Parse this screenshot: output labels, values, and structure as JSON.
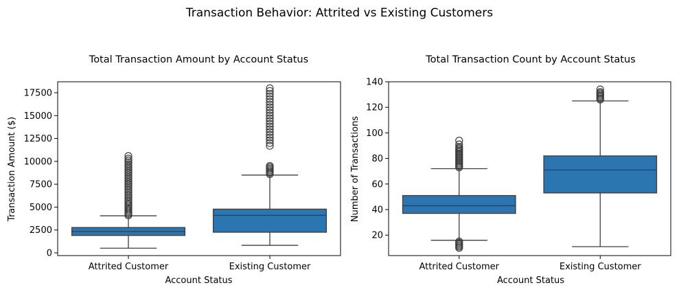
{
  "figure": {
    "title": "Transaction Behavior: Attrited vs Existing Customers"
  },
  "colors": {
    "box_fill": "#2b75b0",
    "line": "#3d3d3d",
    "axes": "#000000"
  },
  "chart_data": [
    {
      "type": "box",
      "title": "Total Transaction Amount by Account Status",
      "xlabel": "Account Status",
      "ylabel": "Transaction Amount ($)",
      "ylim": [
        -300,
        18700
      ],
      "yticks": [
        0,
        2500,
        5000,
        7500,
        10000,
        12500,
        15000,
        17500
      ],
      "ytick_labels": [
        "0",
        "2500",
        "5000",
        "7500",
        "10000",
        "12500",
        "15000",
        "17500"
      ],
      "categories": [
        "Attrited Customer",
        "Existing Customer"
      ],
      "boxes": [
        {
          "category": "Attrited Customer",
          "whisker_low": 510,
          "q1": 1900,
          "median": 2330,
          "q3": 2770,
          "whisker_high": 4050,
          "outliers": [
            4100,
            4250,
            4400,
            4550,
            4700,
            4850,
            5000,
            5150,
            5300,
            5500,
            5700,
            5900,
            6100,
            6300,
            6500,
            6700,
            6900,
            7100,
            7300,
            7500,
            7700,
            7900,
            8100,
            8300,
            8500,
            8700,
            8900,
            9100,
            9300,
            9500,
            9700,
            9900,
            10100,
            10300,
            10580
          ]
        },
        {
          "category": "Existing Customer",
          "whisker_low": 820,
          "q1": 2250,
          "median": 4100,
          "q3": 4780,
          "whisker_high": 8500,
          "outliers": [
            8600,
            8750,
            8900,
            9050,
            9200,
            9350,
            9500,
            11700,
            12000,
            12300,
            12600,
            12900,
            13200,
            13500,
            13800,
            14100,
            14400,
            14700,
            15000,
            15300,
            15600,
            15900,
            16200,
            16500,
            16800,
            17100,
            17400,
            17700,
            17990
          ]
        }
      ]
    },
    {
      "type": "box",
      "title": "Total Transaction Count by Account Status",
      "xlabel": "Account Status",
      "ylabel": "Number of Transactions",
      "ylim": [
        4,
        140
      ],
      "yticks": [
        20,
        40,
        60,
        80,
        100,
        120,
        140
      ],
      "ytick_labels": [
        "20",
        "40",
        "60",
        "80",
        "100",
        "120",
        "140"
      ],
      "categories": [
        "Attrited Customer",
        "Existing Customer"
      ],
      "boxes": [
        {
          "category": "Attrited Customer",
          "whisker_low": 16,
          "q1": 37,
          "median": 43,
          "q3": 51,
          "whisker_high": 72,
          "outliers": [
            10,
            11,
            12,
            13,
            14,
            15,
            73,
            74,
            75,
            76,
            77,
            78,
            79,
            80,
            81,
            82,
            83,
            84,
            85,
            86,
            87,
            88,
            89,
            91,
            94
          ]
        },
        {
          "category": "Existing Customer",
          "whisker_low": 11,
          "q1": 53,
          "median": 71,
          "q3": 82,
          "whisker_high": 125,
          "outliers": [
            126,
            127,
            128,
            129,
            130,
            131,
            132,
            134
          ]
        }
      ]
    }
  ]
}
